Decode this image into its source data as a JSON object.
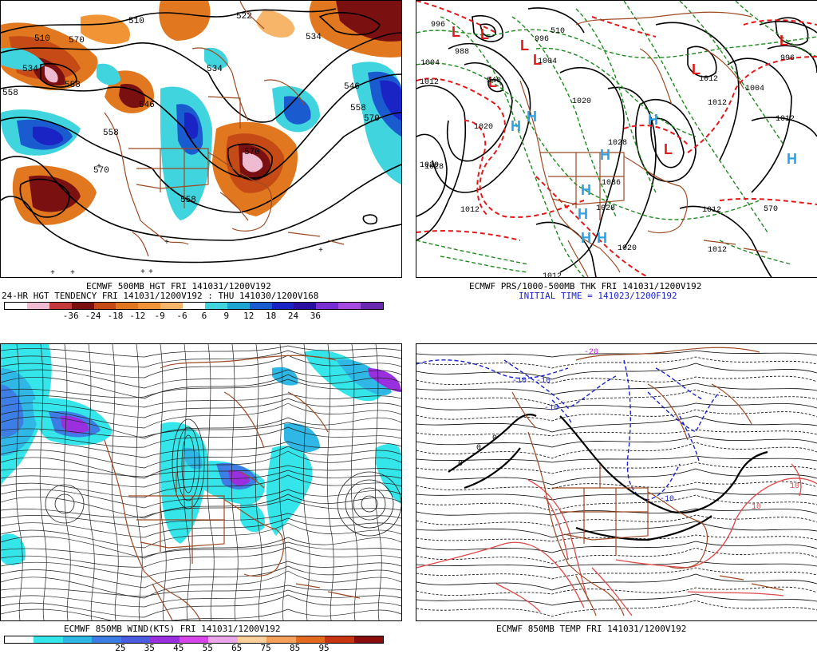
{
  "panels": [
    {
      "id": "tl",
      "captions": [
        "ECMWF 500MB HGT FRI 141031/1200V192",
        "24-HR HGT TENDENCY FRI 141031/1200V192 : THU 141030/1200V168"
      ],
      "color_scale": {
        "colors": [
          "#ffffff",
          "#efbbd0",
          "#c43a3a",
          "#7a1010",
          "#c64a16",
          "#e1781f",
          "#f09436",
          "#f7b56a",
          "#ffffff",
          "#40d4df",
          "#1fa5d2",
          "#1a5bd0",
          "#1a24c4",
          "#2b0fa3",
          "#7a2fd2",
          "#a64be0",
          "#6a28b0"
        ],
        "labels": [
          "-36",
          "-24",
          "-18",
          "-12",
          "-9",
          "-6",
          "6",
          "9",
          "12",
          "18",
          "24",
          "36"
        ]
      },
      "contour_labels": [
        "510",
        "522",
        "534",
        "510",
        "570",
        "534",
        "558",
        "546",
        "534",
        "558",
        "546",
        "570",
        "558",
        "570",
        "558",
        "558",
        "570"
      ]
    },
    {
      "id": "tr",
      "captions": [
        "ECMWF PRS/1000-500MB THK FRI 141031/1200V192",
        "INITIAL TIME = 141023/1200F192"
      ],
      "highs": [
        "H",
        "H",
        "H",
        "H",
        "H",
        "H",
        "H",
        "H",
        "H"
      ],
      "lows": [
        "L",
        "L",
        "L",
        "L",
        "L",
        "L",
        "L",
        "L"
      ],
      "isobar_labels": [
        "996",
        "988",
        "1004",
        "1012",
        "1020",
        "1028",
        "996",
        "1004",
        "1012",
        "1020",
        "1028",
        "1036",
        "1028",
        "1020",
        "1012",
        "1012",
        "1012",
        "1012",
        "1012",
        "996",
        "1004",
        "1012",
        "1020",
        "540",
        "570",
        "510"
      ]
    },
    {
      "id": "bl",
      "captions": [
        "ECMWF 850MB WIND(KTS) FRI 141031/1200V192"
      ],
      "color_scale": {
        "colors": [
          "#ffffff",
          "#34e6ea",
          "#2fb7e6",
          "#3d7ee6",
          "#4a5ce0",
          "#9a2fe0",
          "#d846ea",
          "#eaa6e8",
          "#ffd09a",
          "#f2a05a",
          "#e36a1e",
          "#c63410",
          "#8a0c0c"
        ],
        "labels": [
          "25",
          "35",
          "45",
          "55",
          "65",
          "75",
          "85",
          "95"
        ]
      }
    },
    {
      "id": "br",
      "captions": [
        "ECMWF 850MB TEMP FRI 141031/1200V192"
      ],
      "temp_labels": [
        "-10",
        "-10",
        "-20",
        "-10",
        "-10",
        "0",
        "0",
        "0",
        "10",
        "10"
      ]
    }
  ],
  "colors": {
    "coast": "#9c4a23",
    "height_contour": "#000000",
    "thickness_cold": "#1f8a1f",
    "thickness_warm": "#e01a1a",
    "high_marker": "#2aa3e8",
    "low_marker": "#e01a1a",
    "temp_cold": "#1a22c8",
    "temp_warm": "#e0484a"
  }
}
